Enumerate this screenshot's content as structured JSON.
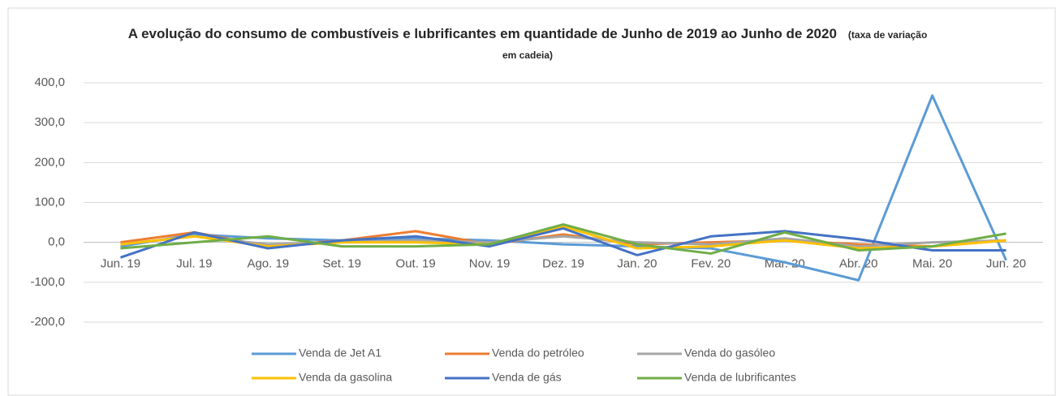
{
  "chart_data": {
    "type": "line",
    "title": "A evolução do consumo de combustíveis e lubrificantes em quantidade de Junho de 2019 ao Junho de 2020",
    "subtitle": "(taxa de variação em cadeia)",
    "categories": [
      "Jun. 19",
      "Jul. 19",
      "Ago. 19",
      "Set. 19",
      "Out. 19",
      "Nov. 19",
      "Dez. 19",
      "Jan. 20",
      "Fev. 20",
      "Mar. 20",
      "Abr. 20",
      "Mai. 20",
      "Jun. 20"
    ],
    "series": [
      {
        "name": "Venda de Jet A1",
        "color": "#5b9bd5",
        "values": [
          -10,
          20,
          10,
          5,
          10,
          5,
          -5,
          -10,
          -15,
          -50,
          -95,
          368,
          -45
        ]
      },
      {
        "name": "Venda do petróleo",
        "color": "#ed7d31",
        "values": [
          0,
          25,
          -10,
          5,
          28,
          -5,
          20,
          -5,
          0,
          5,
          -5,
          -10,
          5
        ]
      },
      {
        "name": "Venda do gasóleo",
        "color": "#a5a5a5",
        "values": [
          -5,
          15,
          -5,
          0,
          5,
          0,
          15,
          0,
          -5,
          10,
          -10,
          0,
          5
        ]
      },
      {
        "name": "Venda da gasolina",
        "color": "#ffc000",
        "values": [
          -5,
          15,
          -10,
          0,
          0,
          -5,
          40,
          -15,
          -10,
          5,
          -15,
          -10,
          5
        ]
      },
      {
        "name": "Venda de gás",
        "color": "#4472c4",
        "values": [
          -38,
          25,
          -15,
          5,
          15,
          -10,
          35,
          -32,
          15,
          28,
          8,
          -20,
          -20
        ]
      },
      {
        "name": "Venda de lubrificantes",
        "color": "#70ad47",
        "values": [
          -15,
          0,
          15,
          -10,
          -10,
          -5,
          45,
          -5,
          -28,
          25,
          -20,
          -10,
          22
        ]
      }
    ],
    "ylim": [
      -200,
      400
    ],
    "yticks": [
      {
        "value": -200,
        "label": "-200,0"
      },
      {
        "value": -100,
        "label": "-100,0"
      },
      {
        "value": 0,
        "label": "0,0"
      },
      {
        "value": 100,
        "label": "100,0"
      },
      {
        "value": 200,
        "label": "200,0"
      },
      {
        "value": 300,
        "label": "300,0"
      },
      {
        "value": 400,
        "label": "400,0"
      }
    ],
    "grid": true,
    "legend": "bottom"
  }
}
